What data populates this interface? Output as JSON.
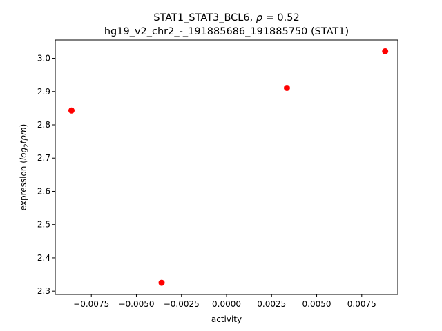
{
  "chart_data": {
    "type": "scatter",
    "title_line1_prefix": "STAT1_STAT3_BCL6, ",
    "title_rho_symbol": "ρ",
    "title_rho_value": " = 0.52",
    "title_line2": "hg19_v2_chr2_-_191885686_191885750 (STAT1)",
    "xlabel": "activity",
    "ylabel_prefix": "expression (",
    "ylabel_log": "log",
    "ylabel_sub": "2",
    "ylabel_tpm": "tpm",
    "ylabel_suffix": ")",
    "xlim": [
      -0.0095,
      0.0095
    ],
    "ylim": [
      2.29,
      3.055
    ],
    "x_ticks": [
      -0.0075,
      -0.005,
      -0.0025,
      0.0,
      0.0025,
      0.005,
      0.0075
    ],
    "x_tick_labels": [
      "−0.0075",
      "−0.0050",
      "−0.0025",
      "0.0000",
      "0.0025",
      "0.0050",
      "0.0075"
    ],
    "y_ticks": [
      2.3,
      2.4,
      2.5,
      2.6,
      2.7,
      2.8,
      2.9,
      3.0
    ],
    "y_tick_labels": [
      "2.3",
      "2.4",
      "2.5",
      "2.6",
      "2.7",
      "2.8",
      "2.9",
      "3.0"
    ],
    "grid": false,
    "marker_color": "#ff0000",
    "points": [
      {
        "x": -0.0086,
        "y": 2.843
      },
      {
        "x": -0.0036,
        "y": 2.325
      },
      {
        "x": 0.00335,
        "y": 2.911
      },
      {
        "x": 0.0088,
        "y": 3.021
      }
    ]
  }
}
